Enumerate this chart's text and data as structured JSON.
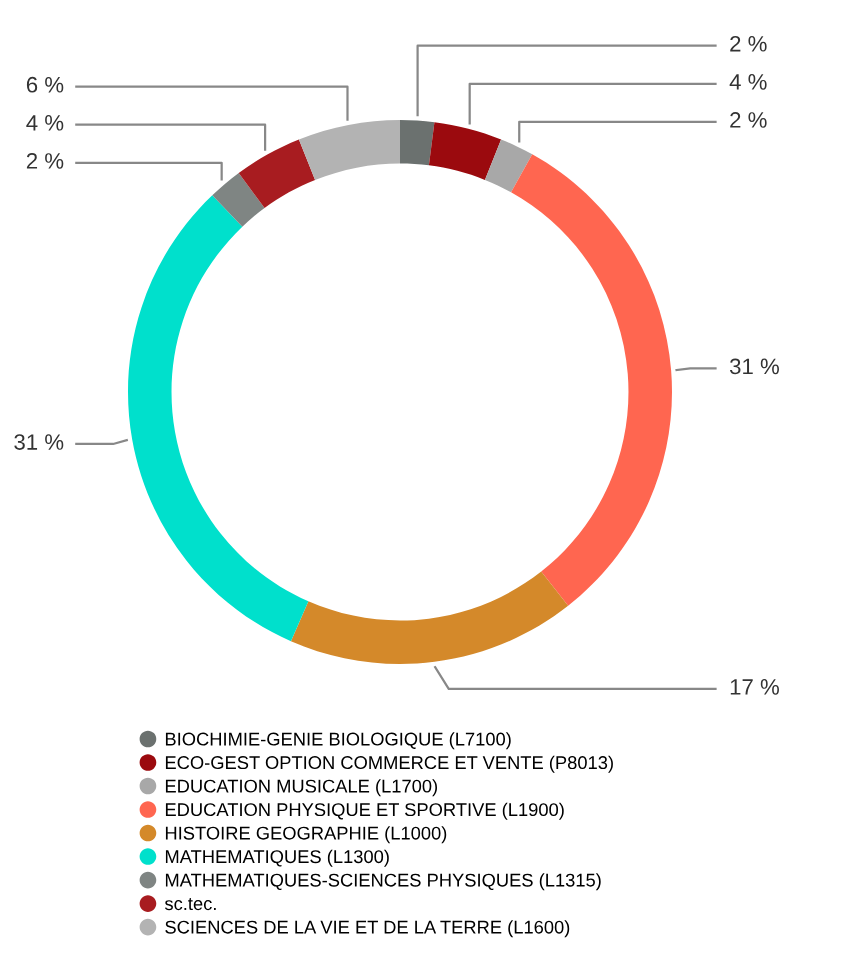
{
  "chart_data": {
    "type": "donut",
    "categories": [
      "BIOCHIMIE-GENIE BIOLOGIQUE (L7100)",
      "ECO-GEST OPTION COMMERCE ET VENTE (P8013)",
      "EDUCATION MUSICALE (L1700)",
      "EDUCATION PHYSIQUE ET SPORTIVE (L1900)",
      "HISTOIRE GEOGRAPHIE (L1000)",
      "MATHEMATIQUES (L1300)",
      "MATHEMATIQUES-SCIENCES PHYSIQUES (L1315)",
      "sc.tec.",
      "SCIENCES DE LA VIE ET DE LA TERRE (L1600)"
    ],
    "values": [
      2,
      4,
      2,
      31,
      17,
      31,
      2,
      4,
      6
    ],
    "value_labels": [
      "2 %",
      "4 %",
      "2 %",
      "31 %",
      "17 %",
      "31 %",
      "2 %",
      "4 %",
      "6 %"
    ],
    "colors": [
      "#6b716f",
      "#9b0a0e",
      "#a8a8a8",
      "#ff6650",
      "#d4892a",
      "#00e0cc",
      "#7f8583",
      "#a81c20",
      "#b3b3b3"
    ],
    "legend": "bottom"
  }
}
